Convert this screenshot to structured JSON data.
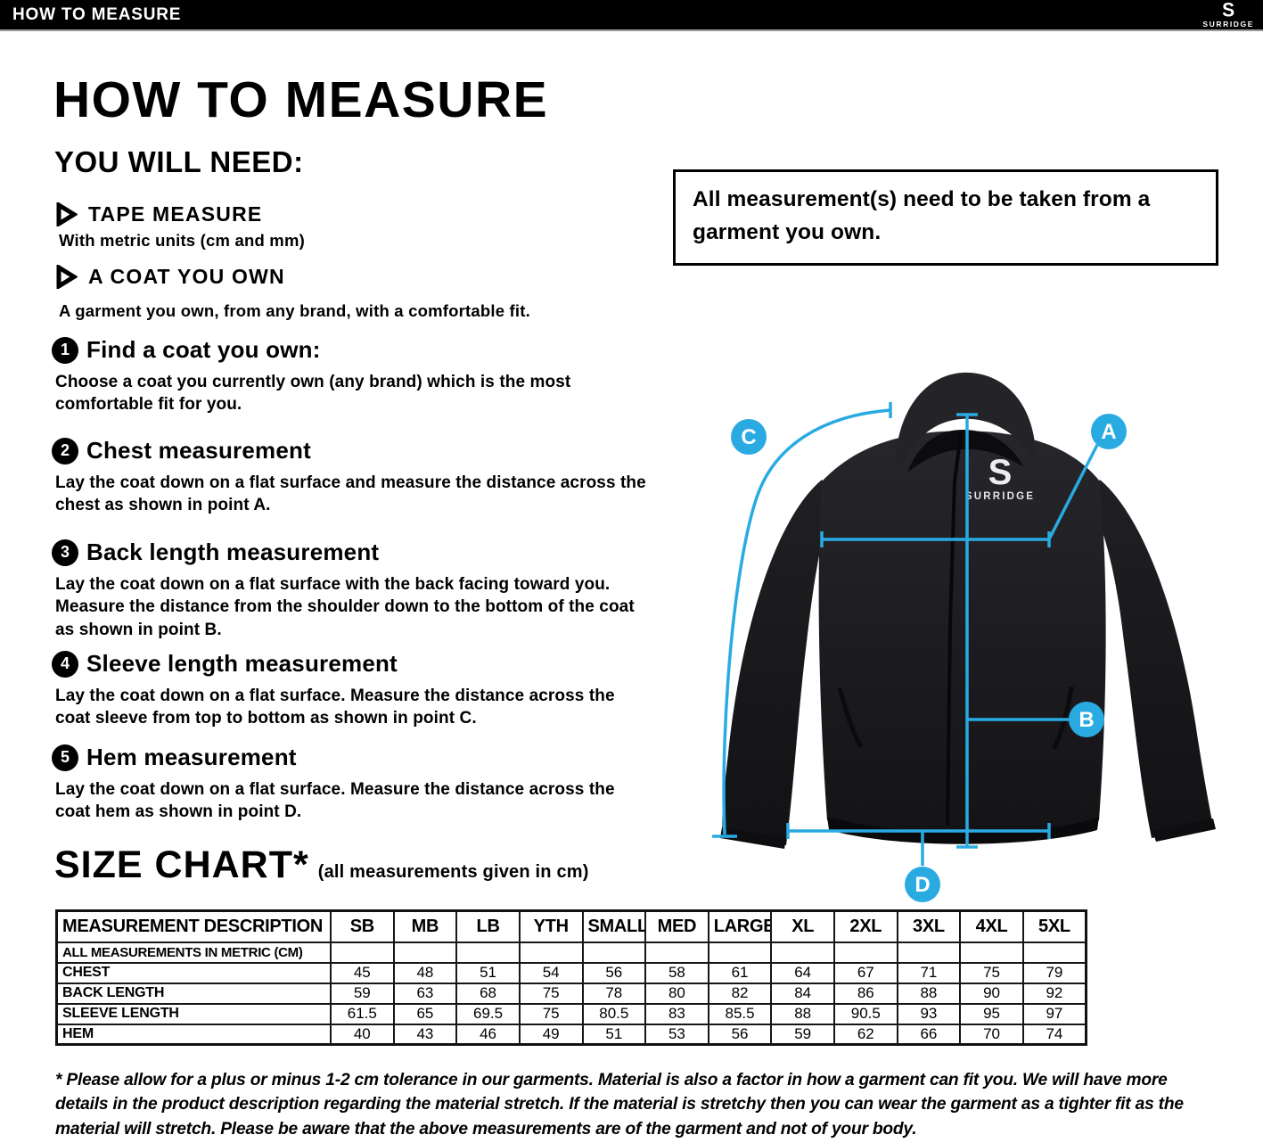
{
  "topbar": {
    "title": "HOW TO MEASURE",
    "brand": "SURRIDGE"
  },
  "page": {
    "title": "HOW TO MEASURE",
    "you_will_need": "YOU WILL NEED:"
  },
  "requirements": [
    {
      "label": "TAPE MEASURE",
      "desc": "With metric units (cm and mm)"
    },
    {
      "label": "A COAT YOU OWN",
      "desc": "A garment you own, from any brand, with a comfortable fit."
    }
  ],
  "steps": [
    {
      "num": "1",
      "title": "Find a coat you own:",
      "body": "Choose a coat you currently own (any brand) which is the most comfortable fit for you."
    },
    {
      "num": "2",
      "title": "Chest measurement",
      "body": "Lay the coat down on a flat surface and measure the distance across the chest as shown in point A."
    },
    {
      "num": "3",
      "title": "Back length measurement",
      "body": "Lay the coat down on a flat surface with the back facing toward you. Measure the distance from the shoulder down to the bottom of the coat as shown in point B."
    },
    {
      "num": "4",
      "title": "Sleeve length measurement",
      "body": "Lay the coat down on a flat surface. Measure the distance across the coat sleeve from top to bottom as shown in point C."
    },
    {
      "num": "5",
      "title": "Hem measurement",
      "body": "Lay the coat down on a flat surface. Measure the distance across the coat hem as shown in point D."
    }
  ],
  "notice": "All measurement(s) need to be taken from a garment you own.",
  "diagram": {
    "accent_color": "#29abe2",
    "garment_brand": "SURRIDGE",
    "points": [
      "A",
      "B",
      "C",
      "D"
    ]
  },
  "size_chart": {
    "heading": "SIZE CHART*",
    "heading_note": "(all measurements given in cm)",
    "chart_data": {
      "type": "table",
      "columns": [
        "MEASUREMENT DESCRIPTION",
        "SB",
        "MB",
        "LB",
        "YTH",
        "SMALL",
        "MED",
        "LARGE",
        "XL",
        "2XL",
        "3XL",
        "4XL",
        "5XL"
      ],
      "unit_row": "ALL MEASUREMENTS IN METRIC (CM)",
      "rows": [
        {
          "label": "CHEST",
          "values": [
            "45",
            "48",
            "51",
            "54",
            "56",
            "58",
            "61",
            "64",
            "67",
            "71",
            "75",
            "79"
          ]
        },
        {
          "label": "BACK LENGTH",
          "values": [
            "59",
            "63",
            "68",
            "75",
            "78",
            "80",
            "82",
            "84",
            "86",
            "88",
            "90",
            "92"
          ]
        },
        {
          "label": "SLEEVE LENGTH",
          "values": [
            "61.5",
            "65",
            "69.5",
            "75",
            "80.5",
            "83",
            "85.5",
            "88",
            "90.5",
            "93",
            "95",
            "97"
          ]
        },
        {
          "label": "HEM",
          "values": [
            "40",
            "43",
            "46",
            "49",
            "51",
            "53",
            "56",
            "59",
            "62",
            "66",
            "70",
            "74"
          ]
        }
      ]
    }
  },
  "footnote": "* Please allow for a plus or minus 1-2 cm tolerance in our garments. Material is also a factor in how a garment can fit you. We will have more details in the product description regarding the material stretch.  If the material is stretchy then you can wear the garment as a tighter fit as the material will stretch.  Please be aware that the above measurements are of the garment and not of your body."
}
